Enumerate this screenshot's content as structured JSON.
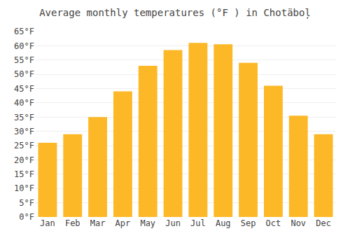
{
  "chart_data": {
    "type": "bar",
    "title": "Average monthly temperatures (°F ) in Chotäboļ",
    "categories": [
      "Jan",
      "Feb",
      "Mar",
      "Apr",
      "May",
      "Jun",
      "Jul",
      "Aug",
      "Sep",
      "Oct",
      "Nov",
      "Dec"
    ],
    "values": [
      26.0,
      29.0,
      35.0,
      44.0,
      53.0,
      58.5,
      61.0,
      60.5,
      54.0,
      46.0,
      35.5,
      29.0
    ],
    "color": "#FDB827",
    "ylim": [
      0,
      65
    ],
    "yticks": [
      {
        "value": 0,
        "label": "0°F"
      },
      {
        "value": 5,
        "label": "5°F"
      },
      {
        "value": 10,
        "label": "10°F"
      },
      {
        "value": 15,
        "label": "15°F"
      },
      {
        "value": 20,
        "label": "20°F"
      },
      {
        "value": 25,
        "label": "25°F"
      },
      {
        "value": 30,
        "label": "30°F"
      },
      {
        "value": 35,
        "label": "35°F"
      },
      {
        "value": 40,
        "label": "40°F"
      },
      {
        "value": 45,
        "label": "45°F"
      },
      {
        "value": 50,
        "label": "50°F"
      },
      {
        "value": 55,
        "label": "55°F"
      },
      {
        "value": 60,
        "label": "60°F"
      },
      {
        "value": 65,
        "label": "65°F"
      }
    ],
    "grid": true
  }
}
